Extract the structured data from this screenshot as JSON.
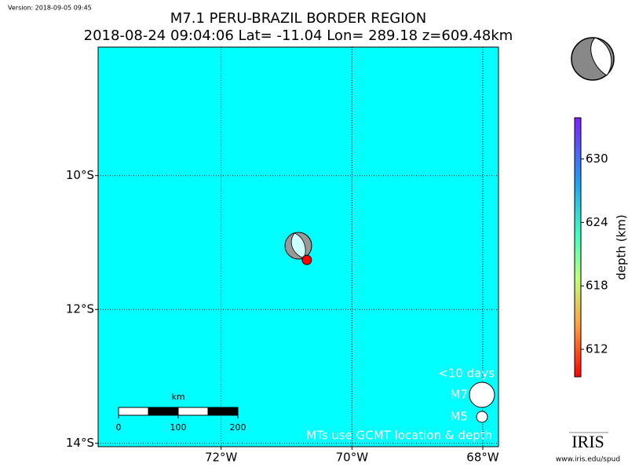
{
  "version": "Version: 2018-09-05 09:45",
  "title": "M7.1 PERU-BRAZIL BORDER REGION",
  "subtitle": "2018-08-24 09:04:06 Lat= -11.04 Lon= 289.18 z=609.48km",
  "map": {
    "xlim": [
      -73.88,
      -67.76
    ],
    "ylim": [
      -14.05,
      -8.08
    ],
    "xticks": [
      {
        "value": -72,
        "label": "72°W"
      },
      {
        "value": -70,
        "label": "70°W"
      },
      {
        "value": -68,
        "label": "68°W"
      }
    ],
    "yticks": [
      {
        "value": -10,
        "label": "10°S"
      },
      {
        "value": -12,
        "label": "12°S"
      },
      {
        "value": -14,
        "label": "14°S"
      }
    ],
    "grid": true,
    "background": "#00ffff",
    "event": {
      "lon": -70.69,
      "lat": -11.26,
      "color": "#ff0000"
    }
  },
  "colorbar": {
    "label": "depth (km)",
    "lim": [
      609.4,
      633.9
    ],
    "ticks": [
      612,
      618,
      624,
      630
    ]
  },
  "scale_bar": {
    "unit": "km",
    "ticks": [
      0,
      100,
      200
    ]
  },
  "legend": {
    "title": "<10 days",
    "big": "M7",
    "small": "M5",
    "note": "MTs use GCMT location & depth"
  },
  "logo": {
    "name": "IRIS",
    "url": "www.iris.edu/spud"
  }
}
